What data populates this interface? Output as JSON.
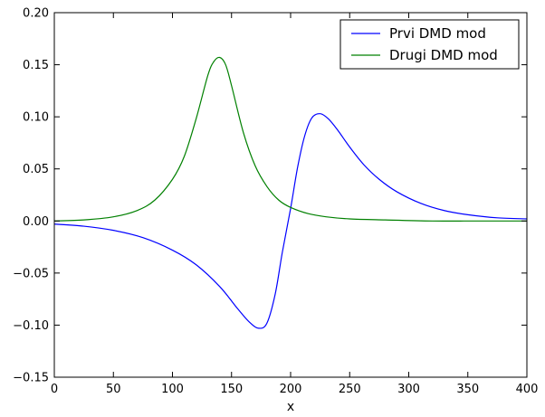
{
  "chart_data": {
    "type": "line",
    "title": "",
    "xlabel": "x",
    "ylabel": "",
    "xlim": [
      0,
      400
    ],
    "ylim": [
      -0.15,
      0.2
    ],
    "xticks": [
      "0",
      "50",
      "100",
      "150",
      "200",
      "250",
      "300",
      "350",
      "400"
    ],
    "yticks": [
      "0.20",
      "0.15",
      "0.10",
      "0.05",
      "0.00",
      "−0.05",
      "−0.10",
      "−0.15"
    ],
    "grid": false,
    "legend_position": "top-right",
    "series": [
      {
        "name": "Prvi DMD mod",
        "color": "#0000ff",
        "x": [
          0,
          25,
          50,
          75,
          100,
          120,
          140,
          155,
          165,
          173,
          180,
          187,
          193,
          200,
          206,
          212,
          218,
          225,
          232,
          240,
          250,
          262,
          275,
          290,
          310,
          330,
          350,
          375,
          400
        ],
        "y": [
          -0.003,
          -0.005,
          -0.009,
          -0.016,
          -0.028,
          -0.042,
          -0.063,
          -0.084,
          -0.097,
          -0.103,
          -0.098,
          -0.07,
          -0.03,
          0.012,
          0.052,
          0.082,
          0.099,
          0.103,
          0.098,
          0.087,
          0.071,
          0.054,
          0.04,
          0.028,
          0.017,
          0.01,
          0.006,
          0.003,
          0.002
        ]
      },
      {
        "name": "Drugi DMD mod",
        "color": "#008000",
        "x": [
          0,
          25,
          50,
          70,
          85,
          100,
          110,
          120,
          130,
          135,
          140,
          145,
          150,
          160,
          170,
          180,
          190,
          200,
          215,
          230,
          250,
          280,
          320,
          360,
          400
        ],
        "y": [
          0.0,
          0.001,
          0.004,
          0.01,
          0.02,
          0.04,
          0.062,
          0.098,
          0.14,
          0.153,
          0.157,
          0.15,
          0.13,
          0.085,
          0.053,
          0.033,
          0.02,
          0.013,
          0.007,
          0.004,
          0.002,
          0.001,
          0.0,
          0.0,
          0.0
        ]
      }
    ]
  }
}
